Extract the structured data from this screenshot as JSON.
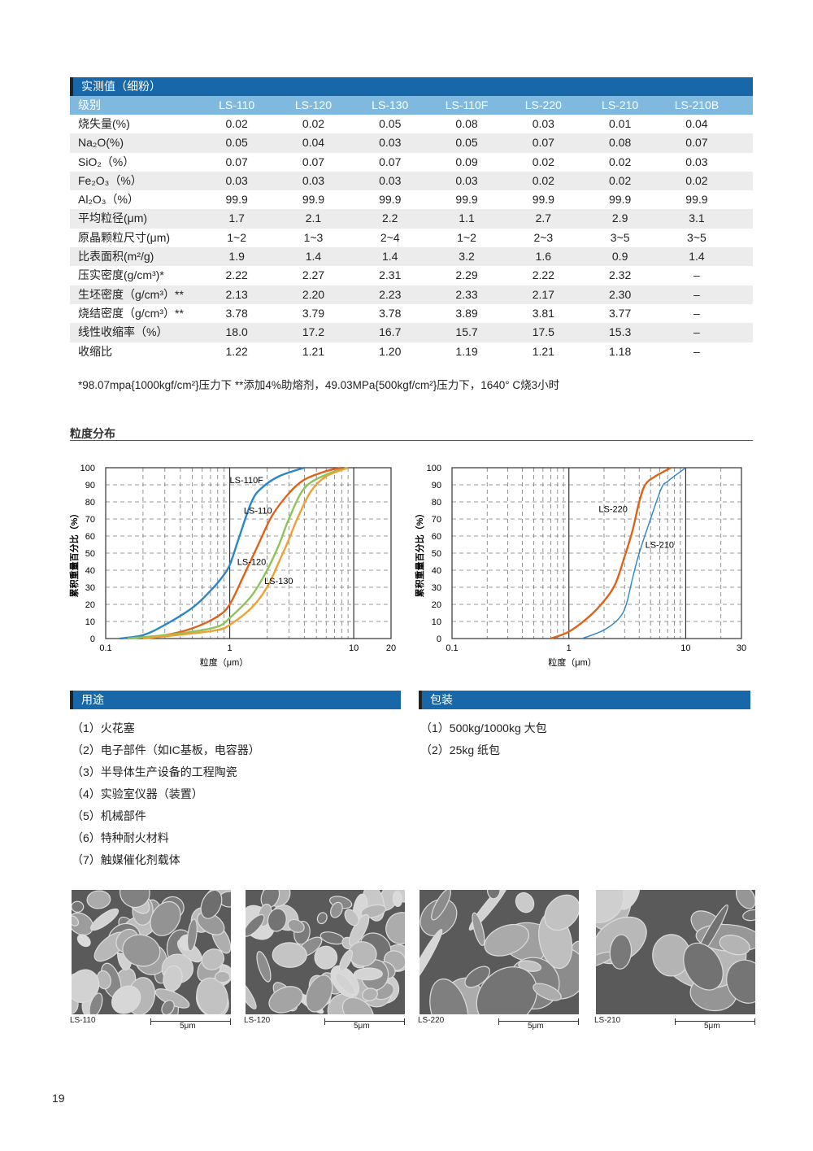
{
  "table": {
    "title": "实测值（细粉）",
    "header_label": "级别",
    "columns": [
      "LS-110",
      "LS-120",
      "LS-130",
      "LS-110F",
      "LS-220",
      "LS-210",
      "LS-210B"
    ],
    "rows": [
      {
        "label": "烧失量(%)",
        "values": [
          "0.02",
          "0.02",
          "0.05",
          "0.08",
          "0.03",
          "0.01",
          "0.04"
        ]
      },
      {
        "label": "Na₂O(%)",
        "values": [
          "0.05",
          "0.04",
          "0.03",
          "0.05",
          "0.07",
          "0.08",
          "0.07"
        ]
      },
      {
        "label": "SiO₂（%）",
        "values": [
          "0.07",
          "0.07",
          "0.07",
          "0.09",
          "0.02",
          "0.02",
          "0.03"
        ]
      },
      {
        "label": "Fe₂O₃（%）",
        "values": [
          "0.03",
          "0.03",
          "0.03",
          "0.03",
          "0.02",
          "0.02",
          "0.02"
        ]
      },
      {
        "label": "Al₂O₃（%）",
        "values": [
          "99.9",
          "99.9",
          "99.9",
          "99.9",
          "99.9",
          "99.9",
          "99.9"
        ]
      },
      {
        "label": "平均粒径(μm)",
        "values": [
          "1.7",
          "2.1",
          "2.2",
          "1.1",
          "2.7",
          "2.9",
          "3.1"
        ]
      },
      {
        "label": "原晶颗粒尺寸(μm)",
        "values": [
          "1~2",
          "1~3",
          "2~4",
          "1~2",
          "2~3",
          "3~5",
          "3~5"
        ]
      },
      {
        "label": "比表面积(m²/g)",
        "values": [
          "1.9",
          "1.4",
          "1.4",
          "3.2",
          "1.6",
          "0.9",
          "1.4"
        ]
      },
      {
        "label": "压实密度(g/cm³)*",
        "values": [
          "2.22",
          "2.27",
          "2.31",
          "2.29",
          "2.22",
          "2.32",
          "–"
        ]
      },
      {
        "label": "生坯密度（g/cm³）**",
        "values": [
          "2.13",
          "2.20",
          "2.23",
          "2.33",
          "2.17",
          "2.30",
          "–"
        ]
      },
      {
        "label": "烧结密度（g/cm³）**",
        "values": [
          "3.78",
          "3.79",
          "3.78",
          "3.89",
          "3.81",
          "3.77",
          "–"
        ]
      },
      {
        "label": "线性收缩率（%）",
        "values": [
          "18.0",
          "17.2",
          "16.7",
          "15.7",
          "17.5",
          "15.3",
          "–"
        ]
      },
      {
        "label": "收缩比",
        "values": [
          "1.22",
          "1.21",
          "1.20",
          "1.19",
          "1.21",
          "1.18",
          "–"
        ]
      }
    ],
    "footnote": "*98.07mpa{1000kgf/cm²}压力下 **添加4%助熔剂，49.03MPa{500kgf/cm²}压力下，1640° C烧3小时"
  },
  "particle_section_title": "粒度分布",
  "chart_data": [
    {
      "type": "line",
      "xscale": "log",
      "xlim": [
        0.1,
        20
      ],
      "ylim": [
        0,
        100
      ],
      "xticks": [
        "0.1",
        "1",
        "10",
        "20"
      ],
      "yticks": [
        "0",
        "10",
        "20",
        "30",
        "40",
        "50",
        "60",
        "70",
        "80",
        "90",
        "100"
      ],
      "xlabel": "粒度（μm）",
      "ylabel": "累积重量百分比（%）",
      "grid": true,
      "series": [
        {
          "name": "LS-110F",
          "color": "#2a86c8",
          "x": [
            0.13,
            0.2,
            0.3,
            0.5,
            0.7,
            0.85,
            1,
            1.2,
            1.5,
            1.8,
            2.5,
            4
          ],
          "y": [
            0,
            2,
            8,
            18,
            28,
            35,
            43,
            60,
            80,
            88,
            95,
            100
          ]
        },
        {
          "name": "LS-110",
          "color": "#e0621a",
          "x": [
            0.15,
            0.3,
            0.5,
            0.8,
            1,
            1.3,
            1.7,
            2.2,
            3,
            4,
            6,
            8
          ],
          "y": [
            0,
            2,
            6,
            13,
            20,
            37,
            55,
            72,
            85,
            93,
            98,
            100
          ]
        },
        {
          "name": "LS-120",
          "color": "#8cc45a",
          "x": [
            0.15,
            0.3,
            0.5,
            0.8,
            1,
            1.5,
            2,
            2.5,
            3,
            4,
            6,
            9
          ],
          "y": [
            0,
            2,
            4,
            7,
            12,
            25,
            40,
            55,
            70,
            88,
            96,
            100
          ]
        },
        {
          "name": "LS-130",
          "color": "#f0a030",
          "x": [
            0.2,
            0.5,
            0.8,
            1,
            1.5,
            2,
            2.5,
            3,
            3.5,
            4.5,
            6,
            9
          ],
          "y": [
            0,
            3,
            5,
            8,
            18,
            30,
            45,
            58,
            70,
            86,
            95,
            100
          ]
        }
      ]
    },
    {
      "type": "line",
      "xscale": "log",
      "xlim": [
        0.1,
        30
      ],
      "ylim": [
        0,
        100
      ],
      "xticks": [
        "0.1",
        "1",
        "10",
        "30"
      ],
      "yticks": [
        "0",
        "10",
        "20",
        "30",
        "40",
        "50",
        "60",
        "70",
        "80",
        "90",
        "100"
      ],
      "xlabel": "粒度（μm）",
      "ylabel": "累积重量百分比（%）",
      "grid": true,
      "series": [
        {
          "name": "LS-220",
          "color": "#e0621a",
          "x": [
            0.7,
            1,
            1.5,
            2,
            2.5,
            3,
            3.5,
            4,
            4.5,
            5.5,
            7.5
          ],
          "y": [
            0,
            4,
            13,
            22,
            32,
            48,
            63,
            80,
            90,
            95,
            100
          ]
        },
        {
          "name": "LS-210",
          "color": "#2a86c8",
          "x": [
            1.3,
            2,
            2.7,
            3.1,
            3.5,
            4,
            5,
            6.2,
            7,
            10
          ],
          "y": [
            0,
            5,
            12,
            20,
            35,
            50,
            70,
            88,
            92,
            100
          ]
        }
      ]
    }
  ],
  "uses": {
    "title": "用途",
    "items": [
      "（1）火花塞",
      "（2）电子部件（如IC基板，电容器）",
      "（3）半导体生产设备的工程陶瓷",
      "（4）实验室仪器（装置）",
      "（5）机械部件",
      "（6）特种耐火材料",
      "（7）触媒催化剂载体"
    ]
  },
  "packaging": {
    "title": "包装",
    "items": [
      "（1）500kg/1000kg 大包",
      "（2）25kg 纸包"
    ]
  },
  "micrographs": [
    {
      "caption": "LS-110",
      "scale": "5μm"
    },
    {
      "caption": "LS-120",
      "scale": "5μm"
    },
    {
      "caption": "LS-220",
      "scale": "5μm"
    },
    {
      "caption": "LS-210",
      "scale": "5μm"
    }
  ],
  "page_number": "19"
}
